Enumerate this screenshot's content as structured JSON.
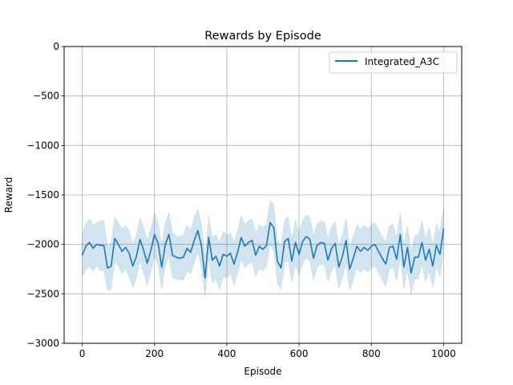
{
  "chart_data": {
    "type": "line",
    "title": "Rewards by Episode",
    "xlabel": "Episode",
    "ylabel": "Reward",
    "xlim": [
      -50,
      1050
    ],
    "ylim": [
      -3000,
      0
    ],
    "xticks": [
      0,
      200,
      400,
      600,
      800,
      1000
    ],
    "yticks": [
      0,
      -500,
      -1000,
      -1500,
      -2000,
      -2500,
      -3000
    ],
    "xtick_labels": [
      "0",
      "200",
      "400",
      "600",
      "800",
      "1000"
    ],
    "ytick_labels": [
      "0",
      "−500",
      "−1000",
      "−1500",
      "−2000",
      "−2500",
      "−3000"
    ],
    "grid": true,
    "legend": {
      "position": "upper right"
    },
    "series": [
      {
        "name": "Integrated_A3C",
        "color": "#1f77b4",
        "band_color": "#1f77b4",
        "x": [
          0,
          10,
          20,
          30,
          40,
          50,
          60,
          70,
          80,
          90,
          100,
          110,
          120,
          130,
          140,
          150,
          160,
          170,
          180,
          190,
          200,
          210,
          220,
          230,
          240,
          250,
          260,
          270,
          280,
          290,
          300,
          310,
          320,
          330,
          340,
          350,
          360,
          370,
          380,
          390,
          400,
          410,
          420,
          430,
          440,
          450,
          460,
          470,
          480,
          490,
          500,
          510,
          520,
          530,
          540,
          550,
          560,
          570,
          580,
          590,
          600,
          610,
          620,
          630,
          640,
          650,
          660,
          670,
          680,
          690,
          700,
          710,
          720,
          730,
          740,
          750,
          760,
          770,
          780,
          790,
          800,
          810,
          820,
          830,
          840,
          850,
          860,
          870,
          880,
          890,
          900,
          910,
          920,
          930,
          940,
          950,
          960,
          970,
          980,
          990,
          1000
        ],
        "y": [
          -2110,
          -2020,
          -1980,
          -2040,
          -2000,
          -2010,
          -2010,
          -2240,
          -2220,
          -1940,
          -2000,
          -2070,
          -2030,
          -2090,
          -2220,
          -2120,
          -1950,
          -2060,
          -2190,
          -2060,
          -1900,
          -1990,
          -2230,
          -2000,
          -1900,
          -2110,
          -2130,
          -2140,
          -2130,
          -2040,
          -2080,
          -1960,
          -1860,
          -2020,
          -2340,
          -1930,
          -2160,
          -2120,
          -2220,
          -2100,
          -2120,
          -2090,
          -2200,
          -2080,
          -1930,
          -2020,
          -1980,
          -1960,
          -2110,
          -2020,
          -2050,
          -2010,
          -1780,
          -1830,
          -2170,
          -2240,
          -1970,
          -1940,
          -2170,
          -1980,
          -2100,
          -1970,
          -1920,
          -1950,
          -2140,
          -2010,
          -1980,
          -1990,
          -2160,
          -2040,
          -1990,
          -2230,
          -2120,
          -1960,
          -2250,
          -2140,
          -2020,
          -2070,
          -2030,
          -2060,
          -2020,
          -2000,
          -2070,
          -2140,
          -2200,
          -2030,
          -2020,
          -2150,
          -1900,
          -2230,
          -2030,
          -2290,
          -2130,
          -2130,
          -1980,
          -2160,
          -2050,
          -2220,
          -2010,
          -2100,
          -1840
        ],
        "lower": [
          -2330,
          -2260,
          -2230,
          -2270,
          -2220,
          -2270,
          -2260,
          -2460,
          -2460,
          -2170,
          -2220,
          -2300,
          -2250,
          -2320,
          -2440,
          -2340,
          -2170,
          -2290,
          -2420,
          -2280,
          -2120,
          -2210,
          -2460,
          -2220,
          -2120,
          -2340,
          -2350,
          -2360,
          -2360,
          -2270,
          -2300,
          -2190,
          -2080,
          -2240,
          -2540,
          -2150,
          -2390,
          -2340,
          -2460,
          -2330,
          -2340,
          -2300,
          -2420,
          -2300,
          -2150,
          -2240,
          -2200,
          -2180,
          -2330,
          -2240,
          -2270,
          -2230,
          -2000,
          -2070,
          -2390,
          -2460,
          -2190,
          -2160,
          -2390,
          -2200,
          -2320,
          -2190,
          -2140,
          -2170,
          -2360,
          -2230,
          -2200,
          -2210,
          -2380,
          -2260,
          -2210,
          -2450,
          -2340,
          -2190,
          -2470,
          -2360,
          -2240,
          -2290,
          -2250,
          -2280,
          -2240,
          -2220,
          -2290,
          -2360,
          -2430,
          -2250,
          -2240,
          -2370,
          -2120,
          -2450,
          -2250,
          -2510,
          -2350,
          -2350,
          -2200,
          -2380,
          -2270,
          -2440,
          -2230,
          -2320,
          -2060
        ],
        "upper": [
          -1890,
          -1790,
          -1740,
          -1810,
          -1780,
          -1760,
          -1760,
          -2020,
          -1980,
          -1720,
          -1780,
          -1840,
          -1810,
          -1860,
          -2000,
          -1900,
          -1730,
          -1830,
          -1960,
          -1840,
          -1680,
          -1770,
          -2000,
          -1780,
          -1680,
          -1880,
          -1910,
          -1920,
          -1900,
          -1810,
          -1860,
          -1730,
          -1640,
          -1800,
          -2140,
          -1710,
          -1930,
          -1900,
          -1980,
          -1870,
          -1900,
          -1880,
          -1980,
          -1860,
          -1710,
          -1800,
          -1760,
          -1740,
          -1890,
          -1800,
          -1830,
          -1790,
          -1560,
          -1590,
          -1950,
          -2020,
          -1750,
          -1720,
          -1950,
          -1760,
          -1880,
          -1750,
          -1700,
          -1730,
          -1920,
          -1790,
          -1760,
          -1770,
          -1940,
          -1820,
          -1770,
          -2010,
          -1900,
          -1730,
          -2030,
          -1920,
          -1800,
          -1850,
          -1810,
          -1840,
          -1800,
          -1780,
          -1850,
          -1920,
          -1970,
          -1810,
          -1800,
          -1930,
          -1680,
          -2010,
          -1810,
          -2070,
          -1910,
          -1910,
          -1760,
          -1940,
          -1830,
          -2000,
          -1790,
          -1880,
          -1620
        ]
      }
    ]
  }
}
